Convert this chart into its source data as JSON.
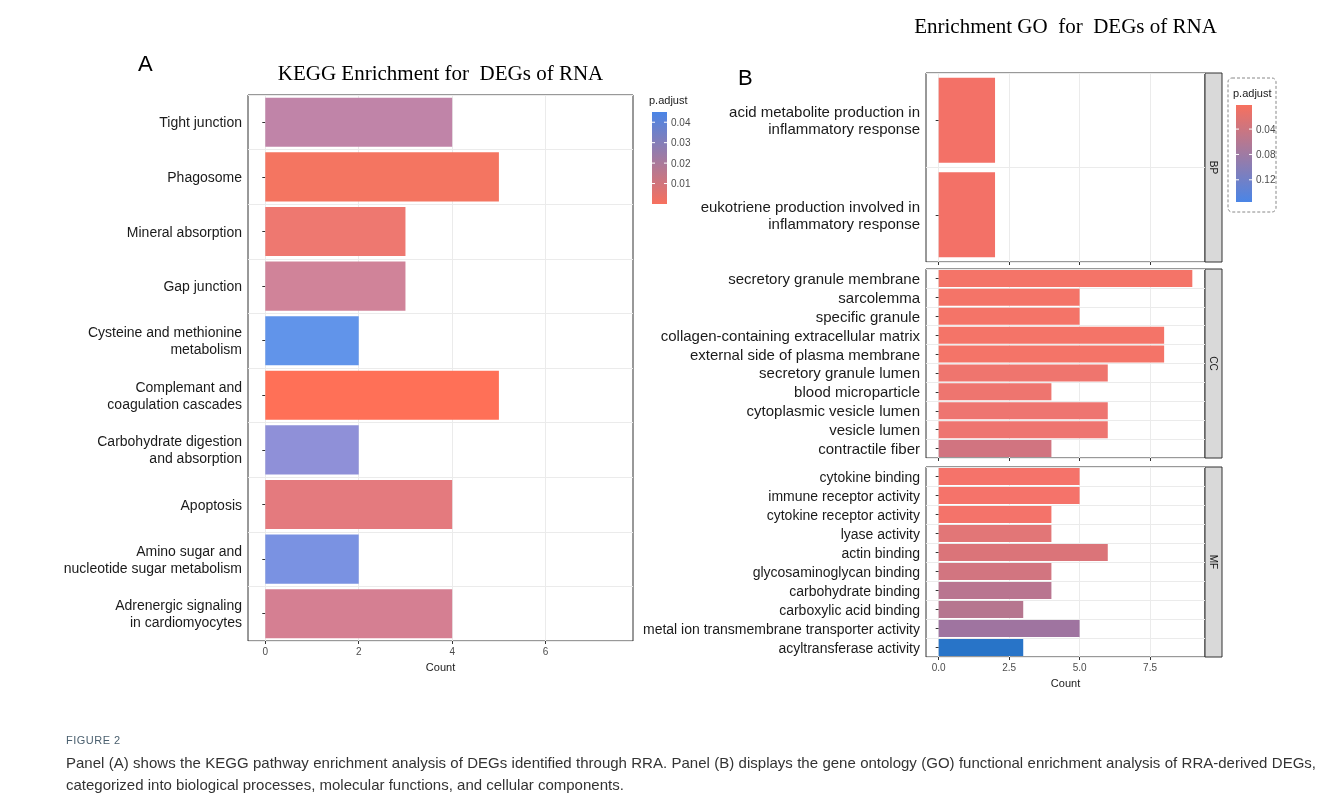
{
  "chart_data": [
    {
      "type": "bar",
      "orientation": "horizontal",
      "title": "KEGG Enrichment for  DEGs of RNA",
      "xlabel": "Count",
      "categories": [
        "Tight junction",
        "Phagosome",
        "Mineral absorption",
        "Gap junction",
        "Cysteine and methionine\nmetabolism",
        "Complemant and\ncoagulation cascades",
        "Carbohydrate digestion\nand absorption",
        "Apoptosis",
        "Amino sugar and\nnucleotide sugar metabolism",
        "Adrenergic signaling\nin cardiomyocytes"
      ],
      "values": [
        4,
        5,
        3,
        3,
        2,
        5,
        2,
        4,
        2,
        4
      ],
      "colors": [
        "#c084a8",
        "#f47561",
        "#ee7870",
        "#d08399",
        "#6194ea",
        "#ff7057",
        "#8f90d8",
        "#e47a7e",
        "#7a92e2",
        "#d57f92"
      ],
      "xlim": [
        -0.37,
        7.87
      ],
      "xticks": [
        0,
        2,
        4,
        6
      ],
      "grid": true,
      "clabel": "p.adjust",
      "clim": [
        0,
        0.045
      ],
      "cticks": [
        0.01,
        0.02,
        0.03,
        0.04
      ],
      "annotations": [
        "A",
        "FIGURE 2",
        "Panel (A) shows the KEGG pathway enrichment analysis of DEGs identified through RRA. Panel (B) displays the gene ontology (GO) functional enrichment analysis of RRA-derived DEGs, categorized into biological processes, molecular functions, and cellular components."
      ]
    },
    {
      "type": "bar",
      "orientation": "horizontal",
      "title": "Enrichment GO  for  DEGs of RNA",
      "y2label": "BP",
      "categories": [
        "acid metabolite production in\ninflammatory response",
        "eukotriene production involved in\ninflammatory response"
      ],
      "values": [
        2,
        2
      ],
      "colors": [
        "#f37167",
        "#f37167"
      ],
      "xlim": [
        -0.45,
        9.45
      ],
      "xticks": [
        0,
        2.5,
        5,
        7.5
      ],
      "grid": true,
      "tick_labels": "y",
      "clabel": "p.adjust",
      "clim": [
        0.155,
        0.002
      ],
      "cticks": [
        0.04,
        0.08,
        0.12
      ],
      "annotations": [
        "B"
      ]
    },
    {
      "type": "bar",
      "orientation": "horizontal",
      "y2label": "CC",
      "categories": [
        "secretory granule membrane",
        "sarcolemma",
        "specific granule",
        "collagen-containing extracellular matrix",
        "external side of plasma membrane",
        "secretory granule lumen",
        "blood microparticle",
        "cytoplasmic vesicle lumen",
        "vesicle lumen",
        "contractile fiber"
      ],
      "values": [
        9,
        5,
        5,
        8,
        8,
        6,
        4,
        6,
        6,
        4
      ],
      "colors": [
        "#f47468",
        "#f47468",
        "#f47468",
        "#f47468",
        "#f47468",
        "#ef756e",
        "#ee756f",
        "#ee7570",
        "#ee7570",
        "#d17480"
      ],
      "xlim": [
        -0.45,
        9.45
      ],
      "xticks": [
        0,
        2.5,
        5,
        7.5
      ],
      "grid": true,
      "tick_labels": "y"
    },
    {
      "type": "bar",
      "orientation": "horizontal",
      "y2label": "MF",
      "xlabel": "Count",
      "categories": [
        "cytokine binding",
        "immune receptor activity",
        "cytokine receptor activity",
        "lyase activity",
        "actin binding",
        "glycosaminoglycan binding",
        "carbohydrate binding",
        "carboxylic acid binding",
        "metal ion transmembrane transporter activity",
        "acyltransferase activity"
      ],
      "values": [
        5,
        5,
        4,
        4,
        6,
        4,
        4,
        3,
        5,
        3
      ],
      "colors": [
        "#f5736a",
        "#f5736a",
        "#f4736a",
        "#e27677",
        "#db7479",
        "#d27580",
        "#b97590",
        "#b6768f",
        "#9f74a0",
        "#2874c8"
      ],
      "xlim": [
        -0.45,
        9.45
      ],
      "xticks": [
        {
          "value": 0,
          "label": "0.0"
        },
        {
          "value": 2.5,
          "label": "2.5"
        },
        {
          "value": 5,
          "label": "5.0"
        },
        {
          "value": 7.5,
          "label": "7.5"
        }
      ],
      "grid": true
    }
  ]
}
